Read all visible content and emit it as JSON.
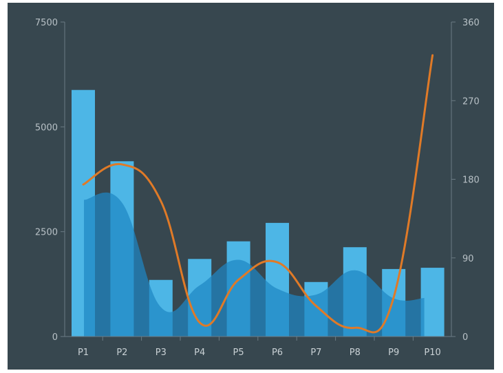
{
  "chart_data": {
    "type": "bar",
    "categories": [
      "P1",
      "P2",
      "P3",
      "P4",
      "P5",
      "P6",
      "P7",
      "P8",
      "P9",
      "P10"
    ],
    "series": [
      {
        "kind": "bar",
        "axis": "left",
        "values": [
          5880,
          4180,
          1350,
          1850,
          2270,
          2710,
          1300,
          2130,
          1610,
          1640
        ]
      },
      {
        "kind": "area",
        "axis": "left",
        "values": [
          3260,
          3190,
          700,
          1220,
          1830,
          1140,
          1000,
          1580,
          910,
          920
        ]
      },
      {
        "kind": "line",
        "axis": "right",
        "values": [
          174,
          197,
          155,
          16,
          65,
          85,
          35,
          10,
          45,
          322
        ]
      }
    ],
    "y_left": {
      "min": 0,
      "max": 7500,
      "ticks": [
        0,
        2500,
        5000,
        7500
      ]
    },
    "y_right": {
      "min": 0,
      "max": 360,
      "ticks": [
        0,
        90,
        180,
        270,
        360
      ]
    },
    "grid": false,
    "colors": {
      "background": "#37474f",
      "bar": "#4db6e6",
      "area": "#1f86c4",
      "line": "#e07a27",
      "axis": "#6b7b84"
    }
  }
}
